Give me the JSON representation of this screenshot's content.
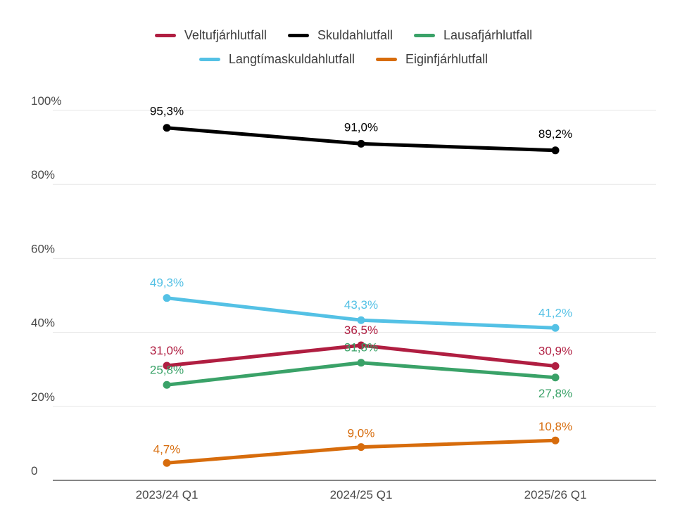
{
  "chart_data": {
    "type": "line",
    "title": "",
    "xlabel": "",
    "ylabel": "",
    "grid": true,
    "legend_position": "top",
    "decimal_separator": ",",
    "categories": [
      "2023/24 Q1",
      "2024/25 Q1",
      "2025/26 Q1"
    ],
    "y_axis": {
      "range": [
        0,
        100
      ],
      "ticks": [
        {
          "value": 0,
          "label": "0"
        },
        {
          "value": 20,
          "label": "20%"
        },
        {
          "value": 40,
          "label": "40%"
        },
        {
          "value": 60,
          "label": "60%"
        },
        {
          "value": 80,
          "label": "80%"
        },
        {
          "value": 100,
          "label": "100%"
        }
      ]
    },
    "series": [
      {
        "name": "Veltufjárhlutfall",
        "color": "#B01E41",
        "values": [
          31.0,
          36.5,
          30.9
        ],
        "point_labels": [
          "31,0%",
          "36,5%",
          "30,9%"
        ],
        "label_positions": [
          "above",
          "above",
          "above"
        ]
      },
      {
        "name": "Skuldahlutfall",
        "color": "#000000",
        "values": [
          95.3,
          91.0,
          89.2
        ],
        "point_labels": [
          "95,3%",
          "91,0%",
          "89,2%"
        ],
        "label_positions": [
          "above",
          "above",
          "above"
        ]
      },
      {
        "name": "Lausafjárhlutfall",
        "color": "#3AA268",
        "values": [
          25.8,
          31.8,
          27.8
        ],
        "point_labels": [
          "25,8%",
          "31,8%",
          "27,8%"
        ],
        "label_positions": [
          "above",
          "above",
          "below"
        ]
      },
      {
        "name": "Langtímaskuldahlutfall",
        "color": "#54C1E5",
        "values": [
          49.3,
          43.3,
          41.2
        ],
        "point_labels": [
          "49,3%",
          "43,3%",
          "41,2%"
        ],
        "label_positions": [
          "above",
          "above",
          "above"
        ]
      },
      {
        "name": "Eiginfjárhlutfall",
        "color": "#D76C0C",
        "values": [
          4.7,
          9.0,
          10.8
        ],
        "point_labels": [
          "4,7%",
          "9,0%",
          "10,8%"
        ],
        "label_positions": [
          "above",
          "above",
          "above"
        ]
      }
    ],
    "style_colors": {
      "gridline": "#E7E7E7",
      "axis_line": "#5E5E5E",
      "tick_text": "#4A4A4A",
      "category_text": "#4A4A4A",
      "legend_text": "#3D3D3D",
      "background": "#FFFFFF"
    }
  }
}
